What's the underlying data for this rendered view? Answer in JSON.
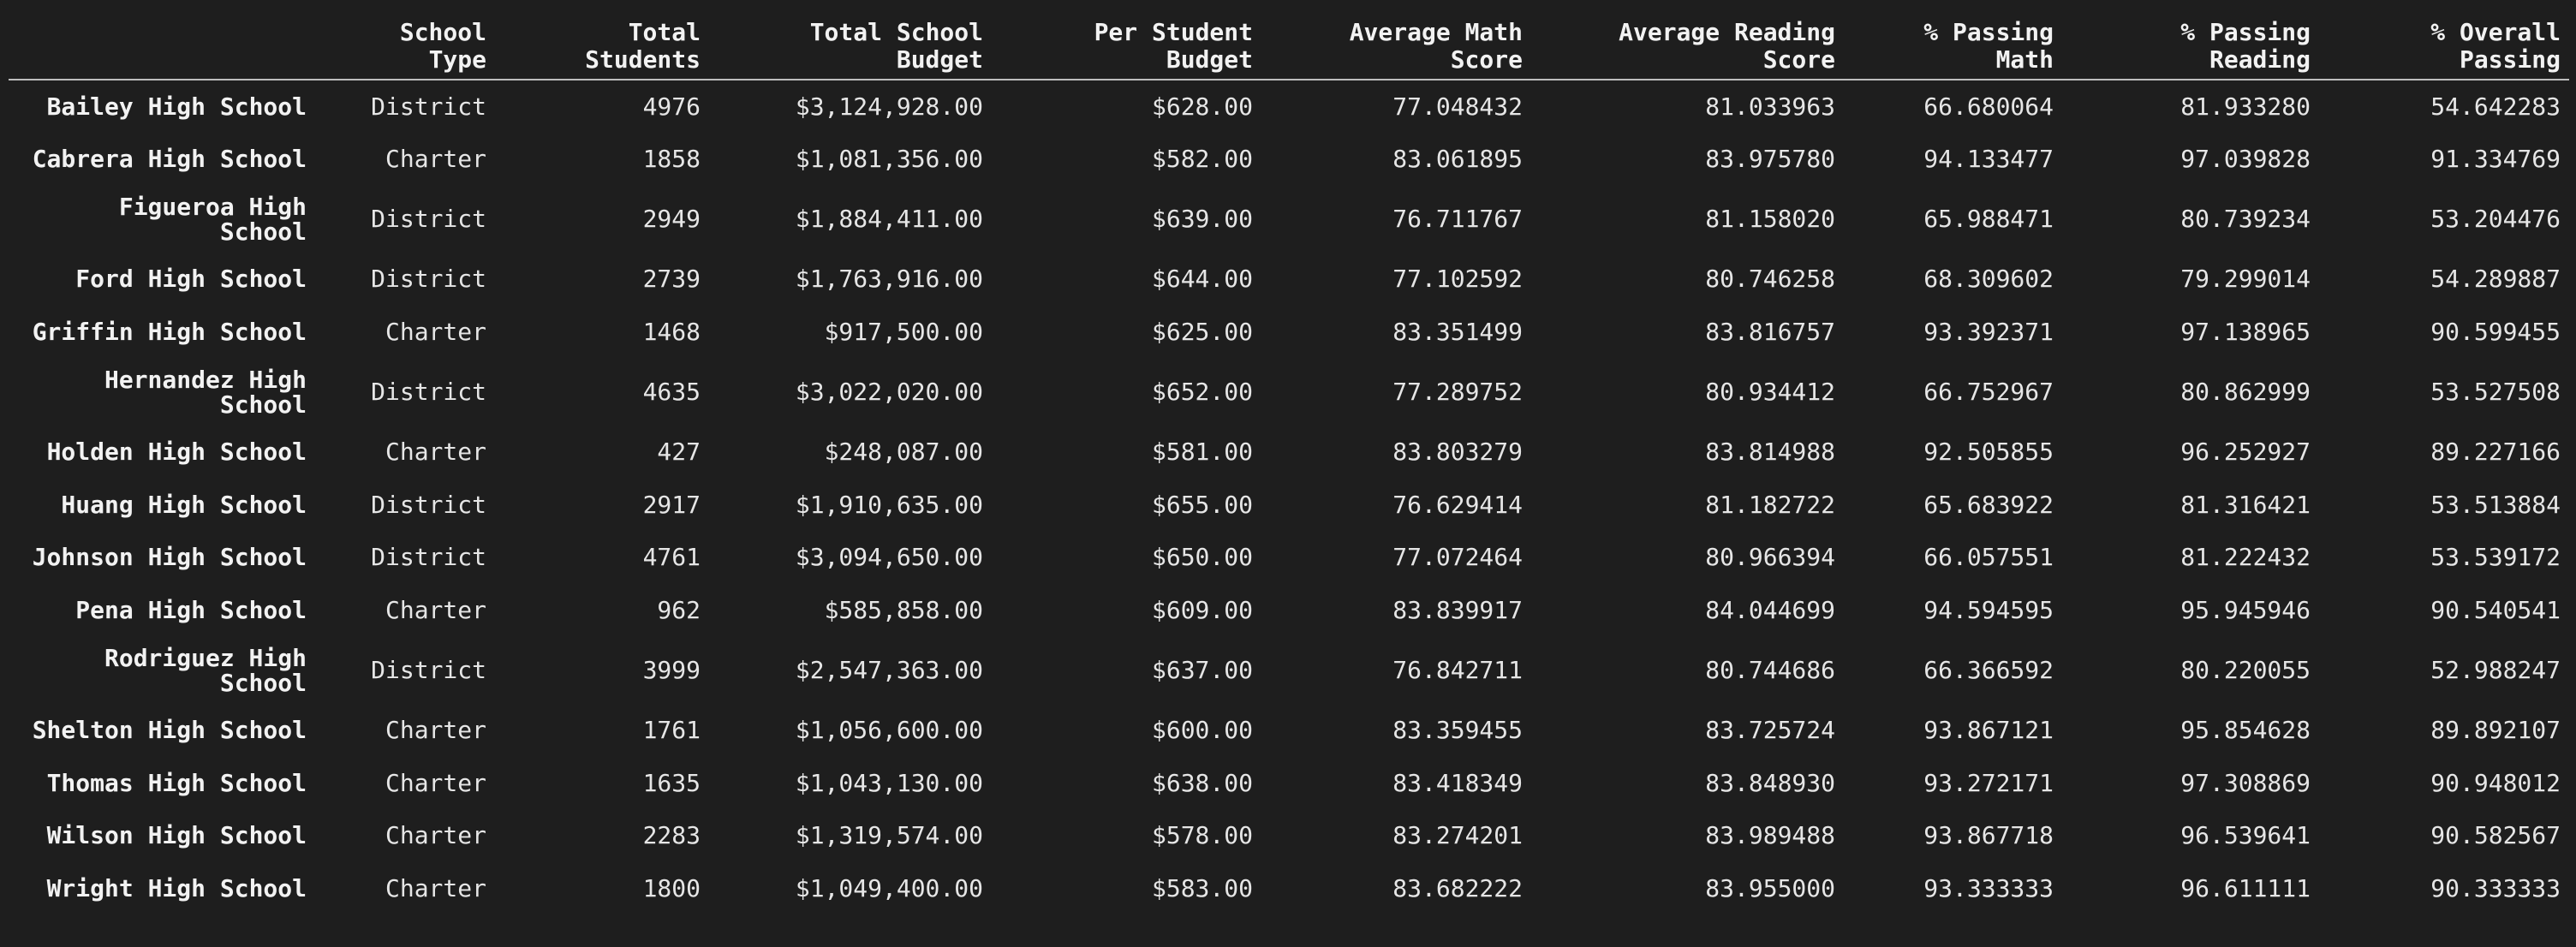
{
  "columns": [
    {
      "key": "index",
      "lines": [
        "",
        ""
      ]
    },
    {
      "key": "school_type",
      "lines": [
        "School",
        "Type"
      ]
    },
    {
      "key": "total_students",
      "lines": [
        "Total",
        "Students"
      ]
    },
    {
      "key": "total_budget",
      "lines": [
        "Total School",
        "Budget"
      ]
    },
    {
      "key": "per_student_budget",
      "lines": [
        "Per Student",
        "Budget"
      ]
    },
    {
      "key": "avg_math",
      "lines": [
        "Average Math",
        "Score"
      ]
    },
    {
      "key": "avg_reading",
      "lines": [
        "Average Reading",
        "Score"
      ]
    },
    {
      "key": "pct_math",
      "lines": [
        "% Passing",
        "Math"
      ]
    },
    {
      "key": "pct_reading",
      "lines": [
        "% Passing",
        "Reading"
      ]
    },
    {
      "key": "pct_overall",
      "lines": [
        "% Overall",
        "Passing"
      ]
    }
  ],
  "rows": [
    {
      "name": [
        "Bailey High School"
      ],
      "type": "District",
      "students": "4976",
      "budget": "$3,124,928.00",
      "per": "$628.00",
      "math": "77.048432",
      "reading": "81.033963",
      "pmath": "66.680064",
      "pread": "81.933280",
      "overall": "54.642283"
    },
    {
      "name": [
        "Cabrera High School"
      ],
      "type": "Charter",
      "students": "1858",
      "budget": "$1,081,356.00",
      "per": "$582.00",
      "math": "83.061895",
      "reading": "83.975780",
      "pmath": "94.133477",
      "pread": "97.039828",
      "overall": "91.334769"
    },
    {
      "name": [
        "Figueroa High",
        "School"
      ],
      "type": "District",
      "students": "2949",
      "budget": "$1,884,411.00",
      "per": "$639.00",
      "math": "76.711767",
      "reading": "81.158020",
      "pmath": "65.988471",
      "pread": "80.739234",
      "overall": "53.204476"
    },
    {
      "name": [
        "Ford High School"
      ],
      "type": "District",
      "students": "2739",
      "budget": "$1,763,916.00",
      "per": "$644.00",
      "math": "77.102592",
      "reading": "80.746258",
      "pmath": "68.309602",
      "pread": "79.299014",
      "overall": "54.289887"
    },
    {
      "name": [
        "Griffin High School"
      ],
      "type": "Charter",
      "students": "1468",
      "budget": "$917,500.00",
      "per": "$625.00",
      "math": "83.351499",
      "reading": "83.816757",
      "pmath": "93.392371",
      "pread": "97.138965",
      "overall": "90.599455"
    },
    {
      "name": [
        "Hernandez High",
        "School"
      ],
      "type": "District",
      "students": "4635",
      "budget": "$3,022,020.00",
      "per": "$652.00",
      "math": "77.289752",
      "reading": "80.934412",
      "pmath": "66.752967",
      "pread": "80.862999",
      "overall": "53.527508"
    },
    {
      "name": [
        "Holden High School"
      ],
      "type": "Charter",
      "students": "427",
      "budget": "$248,087.00",
      "per": "$581.00",
      "math": "83.803279",
      "reading": "83.814988",
      "pmath": "92.505855",
      "pread": "96.252927",
      "overall": "89.227166"
    },
    {
      "name": [
        "Huang High School"
      ],
      "type": "District",
      "students": "2917",
      "budget": "$1,910,635.00",
      "per": "$655.00",
      "math": "76.629414",
      "reading": "81.182722",
      "pmath": "65.683922",
      "pread": "81.316421",
      "overall": "53.513884"
    },
    {
      "name": [
        "Johnson High School"
      ],
      "type": "District",
      "students": "4761",
      "budget": "$3,094,650.00",
      "per": "$650.00",
      "math": "77.072464",
      "reading": "80.966394",
      "pmath": "66.057551",
      "pread": "81.222432",
      "overall": "53.539172"
    },
    {
      "name": [
        "Pena High School"
      ],
      "type": "Charter",
      "students": "962",
      "budget": "$585,858.00",
      "per": "$609.00",
      "math": "83.839917",
      "reading": "84.044699",
      "pmath": "94.594595",
      "pread": "95.945946",
      "overall": "90.540541"
    },
    {
      "name": [
        "Rodriguez High",
        "School"
      ],
      "type": "District",
      "students": "3999",
      "budget": "$2,547,363.00",
      "per": "$637.00",
      "math": "76.842711",
      "reading": "80.744686",
      "pmath": "66.366592",
      "pread": "80.220055",
      "overall": "52.988247"
    },
    {
      "name": [
        "Shelton High School"
      ],
      "type": "Charter",
      "students": "1761",
      "budget": "$1,056,600.00",
      "per": "$600.00",
      "math": "83.359455",
      "reading": "83.725724",
      "pmath": "93.867121",
      "pread": "95.854628",
      "overall": "89.892107"
    },
    {
      "name": [
        "Thomas High School"
      ],
      "type": "Charter",
      "students": "1635",
      "budget": "$1,043,130.00",
      "per": "$638.00",
      "math": "83.418349",
      "reading": "83.848930",
      "pmath": "93.272171",
      "pread": "97.308869",
      "overall": "90.948012"
    },
    {
      "name": [
        "Wilson High School"
      ],
      "type": "Charter",
      "students": "2283",
      "budget": "$1,319,574.00",
      "per": "$578.00",
      "math": "83.274201",
      "reading": "83.989488",
      "pmath": "93.867718",
      "pread": "96.539641",
      "overall": "90.582567"
    },
    {
      "name": [
        "Wright High School"
      ],
      "type": "Charter",
      "students": "1800",
      "budget": "$1,049,400.00",
      "per": "$583.00",
      "math": "83.682222",
      "reading": "83.955000",
      "pmath": "93.333333",
      "pread": "96.611111",
      "overall": "90.333333"
    }
  ]
}
